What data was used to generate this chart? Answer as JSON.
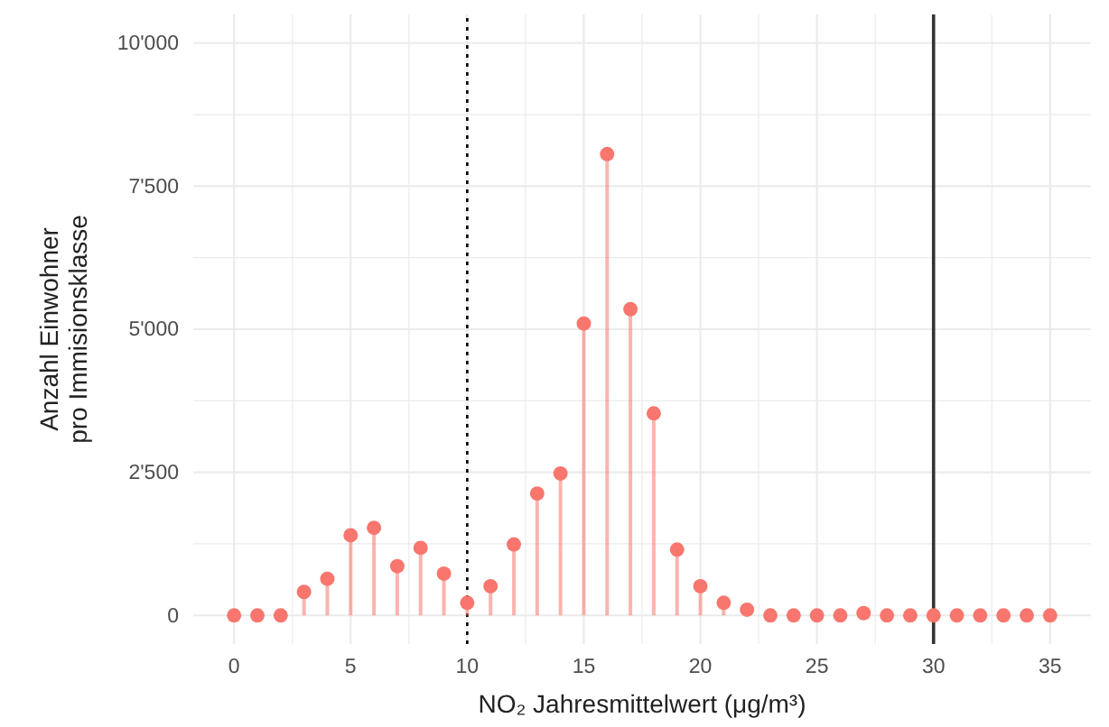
{
  "chart_data": {
    "type": "lollipop",
    "xlabel": "NO₂ Jahresmittelwert (μg/m³)",
    "ylabel": "Anzahl Einwohner\npro Immisionsklasse",
    "x": [
      0,
      1,
      2,
      3,
      4,
      5,
      6,
      7,
      8,
      9,
      10,
      11,
      12,
      13,
      14,
      15,
      16,
      17,
      18,
      19,
      20,
      21,
      22,
      23,
      24,
      25,
      26,
      27,
      28,
      29,
      30,
      31,
      32,
      33,
      34,
      35
    ],
    "series": [
      {
        "color": "#f8766d",
        "values": [
          0,
          0,
          0,
          410,
          640,
          1400,
          1530,
          860,
          1180,
          730,
          220,
          510,
          1240,
          2130,
          2480,
          5100,
          8060,
          5350,
          3530,
          1150,
          510,
          220,
          100,
          0,
          0,
          0,
          0,
          40,
          0,
          0,
          0,
          0,
          0,
          0,
          0,
          0
        ]
      }
    ],
    "xlim": [
      -1.75,
      36.75
    ],
    "ylim": [
      -500,
      10500
    ],
    "xticks": [
      0,
      {
        "value": 2.5,
        "label": null
      },
      5,
      {
        "value": 7.5,
        "label": null
      },
      10,
      {
        "value": 12.5,
        "label": null
      },
      15,
      {
        "value": 17.5,
        "label": null
      },
      20,
      {
        "value": 22.5,
        "label": null
      },
      25,
      {
        "value": 27.5,
        "label": null
      },
      30,
      {
        "value": 32.5,
        "label": null
      },
      35
    ],
    "yticks": [
      {
        "value": 0,
        "label": "0"
      },
      {
        "value": 1250,
        "label": null
      },
      {
        "value": 2500,
        "label": "2'500"
      },
      {
        "value": 3750,
        "label": null
      },
      {
        "value": 5000,
        "label": "5'000"
      },
      {
        "value": 6250,
        "label": null
      },
      {
        "value": 7500,
        "label": "7'500"
      },
      {
        "value": 8750,
        "label": null
      },
      {
        "value": 10000,
        "label": "10'000"
      }
    ],
    "grid": true,
    "marker": "circle",
    "ref_lines": [
      {
        "axis": "x",
        "value": 10,
        "line_style": "dotted",
        "color": "#000000"
      },
      {
        "axis": "x",
        "value": 30,
        "line_style": "solid",
        "color": "#333333"
      }
    ]
  }
}
